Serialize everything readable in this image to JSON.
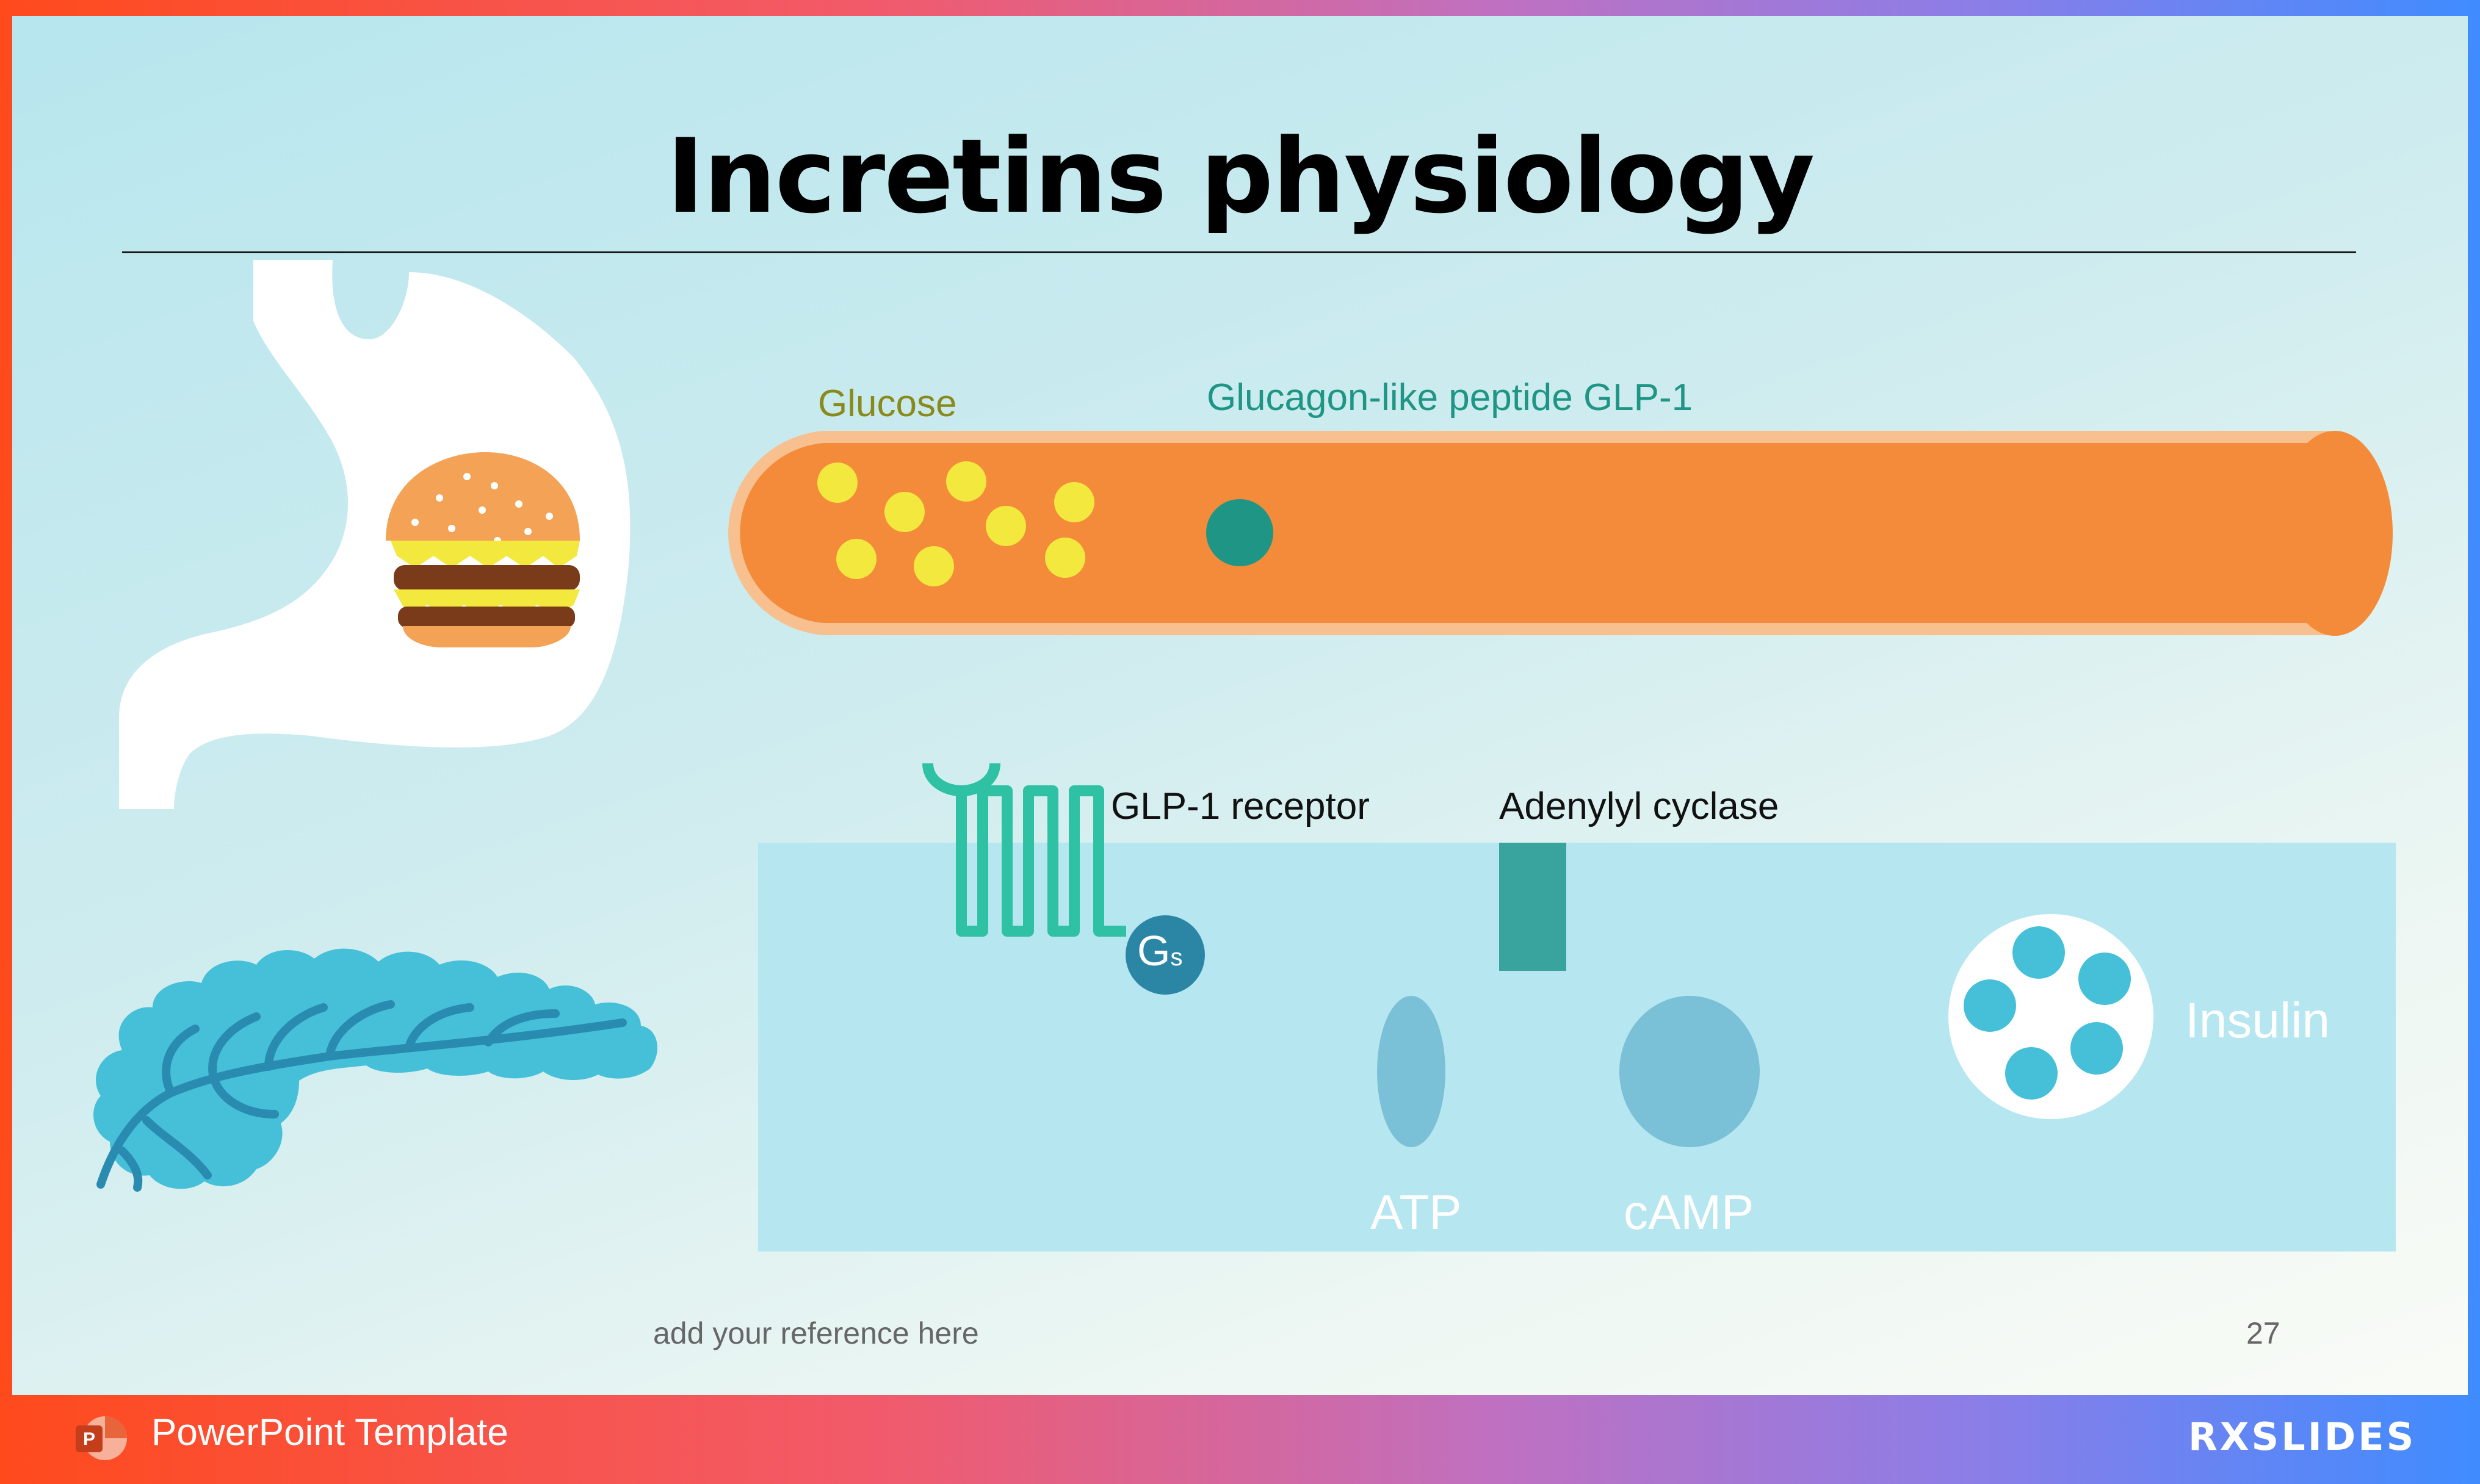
{
  "slide": {
    "title": "Incretins physiology",
    "labels": {
      "glucose": "Glucose",
      "glp1": "Glucagon-like peptide GLP-1",
      "receptor": "GLP-1 receptor",
      "cyclase": "Adenylyl cyclase",
      "gs_main": "G",
      "gs_sub": "s",
      "atp": "ATP",
      "camp": "cAMP",
      "insulin": "Insulin"
    },
    "reference": "add your reference here",
    "page_number": "27"
  },
  "footer": {
    "template_label": "PowerPoint Template",
    "ppt_icon": "powerpoint-icon",
    "brand": "RXSLIDES"
  },
  "colors": {
    "vessel": "#f48b3a",
    "vessel_edge": "#f7c08e",
    "glucose": "#f2e83e",
    "glp1": "#1f9585",
    "receptor": "#2ec1a3",
    "gs": "#2b86a6",
    "cyclase": "#38a49d",
    "atp": "#7ac0d6",
    "insulin_dot": "#45c0d8",
    "pancreas": "#45c0d8",
    "pancreas_vein": "#2a8bb0"
  }
}
